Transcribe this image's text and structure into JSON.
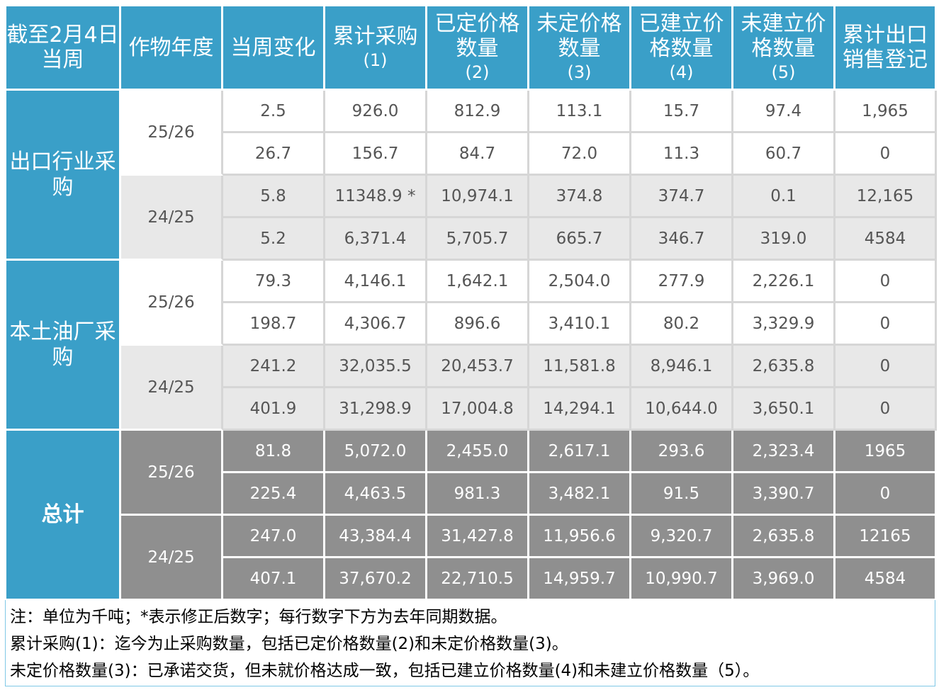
{
  "headers": {
    "week": [
      "截至2月4日",
      "当周"
    ],
    "crop_year": "作物年度",
    "weekly_change": "当周变化",
    "cumulative": [
      "累计采购",
      "(1)"
    ],
    "priced": [
      "已定价格",
      "数量",
      "(2)"
    ],
    "unpriced": [
      "未定价格",
      "数量",
      "(3)"
    ],
    "established": [
      "已建立价",
      "格数量",
      "(4)"
    ],
    "unestablished": [
      "未建立价",
      "格数量",
      "(5)"
    ],
    "export_sales": [
      "累计出口",
      "销售登记"
    ]
  },
  "groups": [
    {
      "label": [
        "出口行业采",
        "购"
      ],
      "style": "normal",
      "years": [
        {
          "label": "25/26",
          "rows": [
            [
              "2.5",
              "926.0",
              "812.9",
              "113.1",
              "15.7",
              "97.4",
              "1,965"
            ],
            [
              "26.7",
              "156.7",
              "84.7",
              "72.0",
              "11.3",
              "60.7",
              "0"
            ]
          ]
        },
        {
          "label": "24/25",
          "rows": [
            [
              "5.8",
              "11348.9 *",
              "10,974.1",
              "374.8",
              "374.7",
              "0.1",
              "12,165"
            ],
            [
              "5.2",
              "6,371.4",
              "5,705.7",
              "665.7",
              "346.7",
              "319.0",
              "4584"
            ]
          ]
        }
      ]
    },
    {
      "label": [
        "本土油厂采",
        "购"
      ],
      "style": "normal",
      "years": [
        {
          "label": "25/26",
          "rows": [
            [
              "79.3",
              "4,146.1",
              "1,642.1",
              "2,504.0",
              "277.9",
              "2,226.1",
              "0"
            ],
            [
              "198.7",
              "4,306.7",
              "896.6",
              "3,410.1",
              "80.2",
              "3,329.9",
              "0"
            ]
          ]
        },
        {
          "label": "24/25",
          "rows": [
            [
              "241.2",
              "32,035.5",
              "20,453.7",
              "11,581.8",
              "8,946.1",
              "2,635.8",
              "0"
            ],
            [
              "401.9",
              "31,298.9",
              "17,004.8",
              "14,294.1",
              "10,644.0",
              "3,650.1",
              "0"
            ]
          ]
        }
      ]
    },
    {
      "label": [
        "总计"
      ],
      "style": "total",
      "years": [
        {
          "label": "25/26",
          "rows": [
            [
              "81.8",
              "5,072.0",
              "2,455.0",
              "2,617.1",
              "293.6",
              "2,323.4",
              "1965"
            ],
            [
              "225.4",
              "4,463.5",
              "981.3",
              "3,482.1",
              "91.5",
              "3,390.7",
              "0"
            ]
          ]
        },
        {
          "label": "24/25",
          "rows": [
            [
              "247.0",
              "43,384.4",
              "31,427.8",
              "11,956.6",
              "9,320.7",
              "2,635.8",
              "12165"
            ],
            [
              "407.1",
              "37,670.2",
              "22,710.5",
              "14,959.7",
              "10,990.7",
              "3,969.0",
              "4584"
            ]
          ]
        }
      ]
    }
  ],
  "notes": [
    "注：单位为千吨；*表示修正后数字；每行数字下方为去年同期数据。",
    "累计采购(1)：迄今为止采购数量，包括已定价格数量(2)和未定价格数量(3)。",
    "未定价格数量(3)：已承诺交货，但未就价格达成一致，包括已建立价格数量(4)和未建立价格数量（5）。"
  ],
  "colors": {
    "header_blue": "#3a9fc8",
    "light_gray": "#e8e8e8",
    "total_gray": "#8f8f8f"
  }
}
